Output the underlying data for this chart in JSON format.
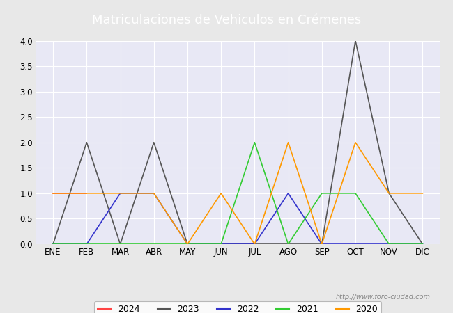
{
  "title": "Matriculaciones de Vehiculos en Crémenes",
  "months": [
    "ENE",
    "FEB",
    "MAR",
    "ABR",
    "MAY",
    "JUN",
    "JUL",
    "AGO",
    "SEP",
    "OCT",
    "NOV",
    "DIC"
  ],
  "series": {
    "2024": {
      "color": "#ff4444",
      "data": [
        1,
        1,
        null,
        null,
        null,
        null,
        null,
        null,
        null,
        null,
        null,
        null
      ]
    },
    "2023": {
      "color": "#555555",
      "data": [
        0,
        2,
        0,
        2,
        0,
        0,
        0,
        0,
        0,
        4,
        1,
        0
      ]
    },
    "2022": {
      "color": "#3333cc",
      "data": [
        0,
        0,
        1,
        1,
        0,
        0,
        0,
        1,
        0,
        0,
        0,
        0
      ]
    },
    "2021": {
      "color": "#33cc33",
      "data": [
        0,
        0,
        0,
        0,
        0,
        0,
        2,
        0,
        1,
        1,
        0,
        0
      ]
    },
    "2020": {
      "color": "#ff9900",
      "data": [
        1,
        1,
        1,
        1,
        0,
        1,
        0,
        2,
        0,
        2,
        1,
        1
      ]
    }
  },
  "ylim": [
    0,
    4.0
  ],
  "yticks": [
    0.0,
    0.5,
    1.0,
    1.5,
    2.0,
    2.5,
    3.0,
    3.5,
    4.0
  ],
  "background_color": "#e8e8e8",
  "plot_background": "#e8e8f5",
  "title_bg_color": "#4a6fa5",
  "title_text_color": "#ffffff",
  "watermark": "http://www.foro-ciudad.com",
  "legend_years": [
    "2024",
    "2023",
    "2022",
    "2021",
    "2020"
  ]
}
